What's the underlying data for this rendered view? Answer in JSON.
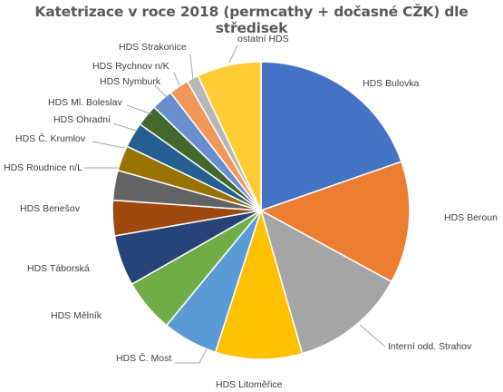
{
  "chart_data": {
    "type": "pie",
    "title": "Katetrizace v roce 2018 (permcathy + dočasné CŽK) dle středisek",
    "legend": "none",
    "slices": [
      {
        "label": "HDS Bulovka",
        "value": 20.0,
        "color": "#4472C4"
      },
      {
        "label": "HDS Beroun",
        "value": 13.5,
        "color": "#ED7D31"
      },
      {
        "label": "Interní odd. Strahov",
        "value": 12.8,
        "color": "#A5A5A5"
      },
      {
        "label": "HDS Litoměřice",
        "value": 9.6,
        "color": "#FFC000"
      },
      {
        "label": "HDS Č. Most",
        "value": 6.1,
        "color": "#5B9BD5"
      },
      {
        "label": "HDS Mělník",
        "value": 5.9,
        "color": "#70AD47"
      },
      {
        "label": "HDS Táborská",
        "value": 5.6,
        "color": "#264478"
      },
      {
        "label": "HDS Benešov",
        "value": 3.9,
        "color": "#9E480E"
      },
      {
        "label": "HDS Roudnice n/L",
        "value": 3.3,
        "color": "#636363"
      },
      {
        "label": "HDS Č. Krumlov",
        "value": 2.8,
        "color": "#997300"
      },
      {
        "label": "HDS Ohradní",
        "value": 2.8,
        "color": "#255E91"
      },
      {
        "label": "HDS Ml. Boleslav",
        "value": 2.4,
        "color": "#43682B"
      },
      {
        "label": "HDS Nymburk",
        "value": 2.4,
        "color": "#698ED0"
      },
      {
        "label": "HDS Rychnov n/K",
        "value": 2.2,
        "color": "#F1975A"
      },
      {
        "label": "HDS Strakonice",
        "value": 1.3,
        "color": "#B7B7B7"
      },
      {
        "label": "ostatní HDS",
        "value": 7.1,
        "color": "#FFCD33"
      }
    ]
  }
}
